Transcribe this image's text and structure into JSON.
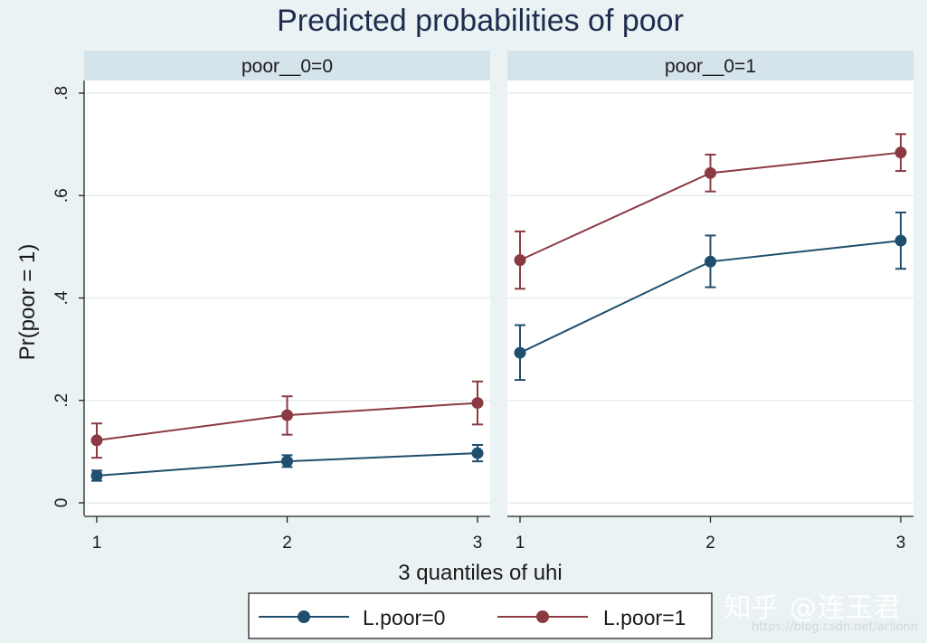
{
  "chart_data": {
    "type": "line",
    "title": "Predicted probabilities of poor",
    "xlabel": "3 quantiles of uhi",
    "ylabel": "Pr(poor = 1)",
    "ylim": [
      0,
      0.8
    ],
    "x_ticks": [
      "1",
      "2",
      "3"
    ],
    "y_ticks": [
      "0",
      ".2",
      ".4",
      ".6",
      ".8"
    ],
    "y_tick_values": [
      0,
      0.2,
      0.4,
      0.6,
      0.8
    ],
    "grid": true,
    "legend_position": "bottom",
    "series_colors": {
      "L.poor=0": "#1f4e6e",
      "L.poor=1": "#8b3a42"
    },
    "panels": [
      {
        "label": "poor__0=0",
        "series": [
          {
            "name": "L.poor=0",
            "x": [
              1,
              2,
              3
            ],
            "values": [
              0.053,
              0.081,
              0.097
            ],
            "ci_low": [
              0.043,
              0.07,
              0.081
            ],
            "ci_high": [
              0.063,
              0.093,
              0.113
            ]
          },
          {
            "name": "L.poor=1",
            "x": [
              1,
              2,
              3
            ],
            "values": [
              0.122,
              0.171,
              0.195
            ],
            "ci_low": [
              0.088,
              0.133,
              0.153
            ],
            "ci_high": [
              0.155,
              0.208,
              0.237
            ]
          }
        ]
      },
      {
        "label": "poor__0=1",
        "series": [
          {
            "name": "L.poor=0",
            "x": [
              1,
              2,
              3
            ],
            "values": [
              0.293,
              0.471,
              0.512
            ],
            "ci_low": [
              0.24,
              0.421,
              0.457
            ],
            "ci_high": [
              0.347,
              0.522,
              0.567
            ]
          },
          {
            "name": "L.poor=1",
            "x": [
              1,
              2,
              3
            ],
            "values": [
              0.474,
              0.644,
              0.684
            ],
            "ci_low": [
              0.418,
              0.608,
              0.648
            ],
            "ci_high": [
              0.53,
              0.68,
              0.72
            ]
          }
        ]
      }
    ],
    "legend": [
      "L.poor=0",
      "L.poor=1"
    ]
  },
  "watermark": {
    "text": "知乎 @连玉君",
    "url": "https://blog.csdn.net/arlionn"
  }
}
